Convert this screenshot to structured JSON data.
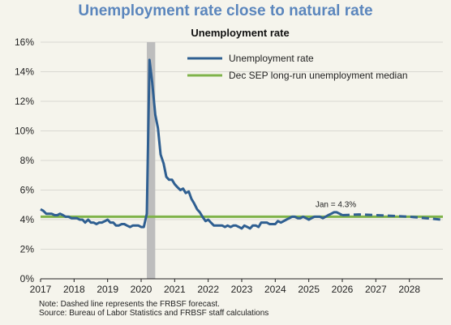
{
  "header": {
    "title": "Unemployment rate close to natural rate"
  },
  "chart_data": {
    "type": "line",
    "subtitle": "Unemployment rate",
    "xlabel": "",
    "ylabel": "",
    "x_ticks": [
      "2017",
      "2018",
      "2019",
      "2020",
      "2021",
      "2022",
      "2023",
      "2024",
      "2025",
      "2026",
      "2027",
      "2028"
    ],
    "y_ticks": [
      "0%",
      "2%",
      "4%",
      "6%",
      "8%",
      "10%",
      "12%",
      "14%",
      "16%"
    ],
    "xlim": [
      2017,
      2029
    ],
    "ylim": [
      0,
      16
    ],
    "legend_position": "top-right",
    "colors": {
      "unemployment": "#2f5f91",
      "median": "#7fb34a",
      "recession": "#bdbdbd"
    },
    "recession_shading": {
      "start": 2020.17,
      "end": 2020.42
    },
    "series": [
      {
        "name": "Unemployment rate",
        "style": "solid",
        "points": [
          [
            2017.0,
            4.7
          ],
          [
            2017.08,
            4.6
          ],
          [
            2017.17,
            4.4
          ],
          [
            2017.25,
            4.4
          ],
          [
            2017.33,
            4.4
          ],
          [
            2017.42,
            4.3
          ],
          [
            2017.5,
            4.3
          ],
          [
            2017.58,
            4.4
          ],
          [
            2017.67,
            4.3
          ],
          [
            2017.75,
            4.2
          ],
          [
            2017.83,
            4.2
          ],
          [
            2017.92,
            4.1
          ],
          [
            2018.0,
            4.1
          ],
          [
            2018.08,
            4.1
          ],
          [
            2018.17,
            4.0
          ],
          [
            2018.25,
            4.0
          ],
          [
            2018.33,
            3.8
          ],
          [
            2018.42,
            4.0
          ],
          [
            2018.5,
            3.8
          ],
          [
            2018.58,
            3.8
          ],
          [
            2018.67,
            3.7
          ],
          [
            2018.75,
            3.8
          ],
          [
            2018.83,
            3.8
          ],
          [
            2018.92,
            3.9
          ],
          [
            2019.0,
            4.0
          ],
          [
            2019.08,
            3.8
          ],
          [
            2019.17,
            3.8
          ],
          [
            2019.25,
            3.6
          ],
          [
            2019.33,
            3.6
          ],
          [
            2019.42,
            3.7
          ],
          [
            2019.5,
            3.7
          ],
          [
            2019.58,
            3.6
          ],
          [
            2019.67,
            3.5
          ],
          [
            2019.75,
            3.6
          ],
          [
            2019.83,
            3.6
          ],
          [
            2019.92,
            3.6
          ],
          [
            2020.0,
            3.5
          ],
          [
            2020.08,
            3.5
          ],
          [
            2020.17,
            4.4
          ],
          [
            2020.25,
            14.8
          ],
          [
            2020.33,
            13.3
          ],
          [
            2020.42,
            11.1
          ],
          [
            2020.5,
            10.2
          ],
          [
            2020.58,
            8.4
          ],
          [
            2020.67,
            7.8
          ],
          [
            2020.75,
            6.9
          ],
          [
            2020.83,
            6.7
          ],
          [
            2020.92,
            6.7
          ],
          [
            2021.0,
            6.4
          ],
          [
            2021.08,
            6.2
          ],
          [
            2021.17,
            6.0
          ],
          [
            2021.25,
            6.1
          ],
          [
            2021.33,
            5.8
          ],
          [
            2021.42,
            5.9
          ],
          [
            2021.5,
            5.4
          ],
          [
            2021.58,
            5.1
          ],
          [
            2021.67,
            4.7
          ],
          [
            2021.75,
            4.5
          ],
          [
            2021.83,
            4.2
          ],
          [
            2021.92,
            3.9
          ],
          [
            2022.0,
            4.0
          ],
          [
            2022.08,
            3.8
          ],
          [
            2022.17,
            3.6
          ],
          [
            2022.25,
            3.6
          ],
          [
            2022.33,
            3.6
          ],
          [
            2022.42,
            3.6
          ],
          [
            2022.5,
            3.5
          ],
          [
            2022.58,
            3.6
          ],
          [
            2022.67,
            3.5
          ],
          [
            2022.75,
            3.6
          ],
          [
            2022.83,
            3.6
          ],
          [
            2022.92,
            3.5
          ],
          [
            2023.0,
            3.4
          ],
          [
            2023.08,
            3.6
          ],
          [
            2023.17,
            3.5
          ],
          [
            2023.25,
            3.4
          ],
          [
            2023.33,
            3.6
          ],
          [
            2023.42,
            3.6
          ],
          [
            2023.5,
            3.5
          ],
          [
            2023.58,
            3.8
          ],
          [
            2023.67,
            3.8
          ],
          [
            2023.75,
            3.8
          ],
          [
            2023.83,
            3.7
          ],
          [
            2023.92,
            3.7
          ],
          [
            2024.0,
            3.7
          ],
          [
            2024.08,
            3.9
          ],
          [
            2024.17,
            3.8
          ],
          [
            2024.25,
            3.9
          ],
          [
            2024.33,
            4.0
          ],
          [
            2024.42,
            4.1
          ],
          [
            2024.5,
            4.2
          ],
          [
            2024.58,
            4.2
          ],
          [
            2024.67,
            4.1
          ],
          [
            2024.75,
            4.1
          ],
          [
            2024.83,
            4.2
          ],
          [
            2024.92,
            4.1
          ],
          [
            2025.0,
            4.0
          ],
          [
            2025.08,
            4.1
          ],
          [
            2025.17,
            4.2
          ],
          [
            2025.25,
            4.2
          ],
          [
            2025.33,
            4.2
          ],
          [
            2025.42,
            4.1
          ],
          [
            2025.5,
            4.2
          ],
          [
            2025.58,
            4.3
          ],
          [
            2025.67,
            4.4
          ],
          [
            2025.75,
            4.5
          ],
          [
            2025.83,
            4.5
          ],
          [
            2025.92,
            4.4
          ],
          [
            2026.0,
            4.3
          ]
        ]
      },
      {
        "name": "Unemployment rate (forecast)",
        "style": "dashed",
        "points": [
          [
            2026.0,
            4.3
          ],
          [
            2026.5,
            4.35
          ],
          [
            2027.0,
            4.3
          ],
          [
            2027.5,
            4.25
          ],
          [
            2028.0,
            4.2
          ],
          [
            2028.5,
            4.1
          ],
          [
            2028.95,
            4.0
          ]
        ]
      },
      {
        "name": "Dec SEP long-run unemployment median",
        "style": "solid",
        "points": [
          [
            2017.0,
            4.2
          ],
          [
            2029.0,
            4.2
          ]
        ]
      }
    ],
    "legend": [
      {
        "label": "Unemployment rate",
        "color": "#2f5f91"
      },
      {
        "label": "Dec SEP long-run unemployment median",
        "color": "#7fb34a"
      }
    ],
    "annotation": {
      "text": "Jan = 4.3%",
      "x": 2026.0,
      "y": 4.3
    }
  },
  "footnotes": {
    "note": "Note: Dashed line represents the FRBSF forecast.",
    "source": "Source: Bureau of Labor Statistics and FRBSF staff calculations"
  }
}
